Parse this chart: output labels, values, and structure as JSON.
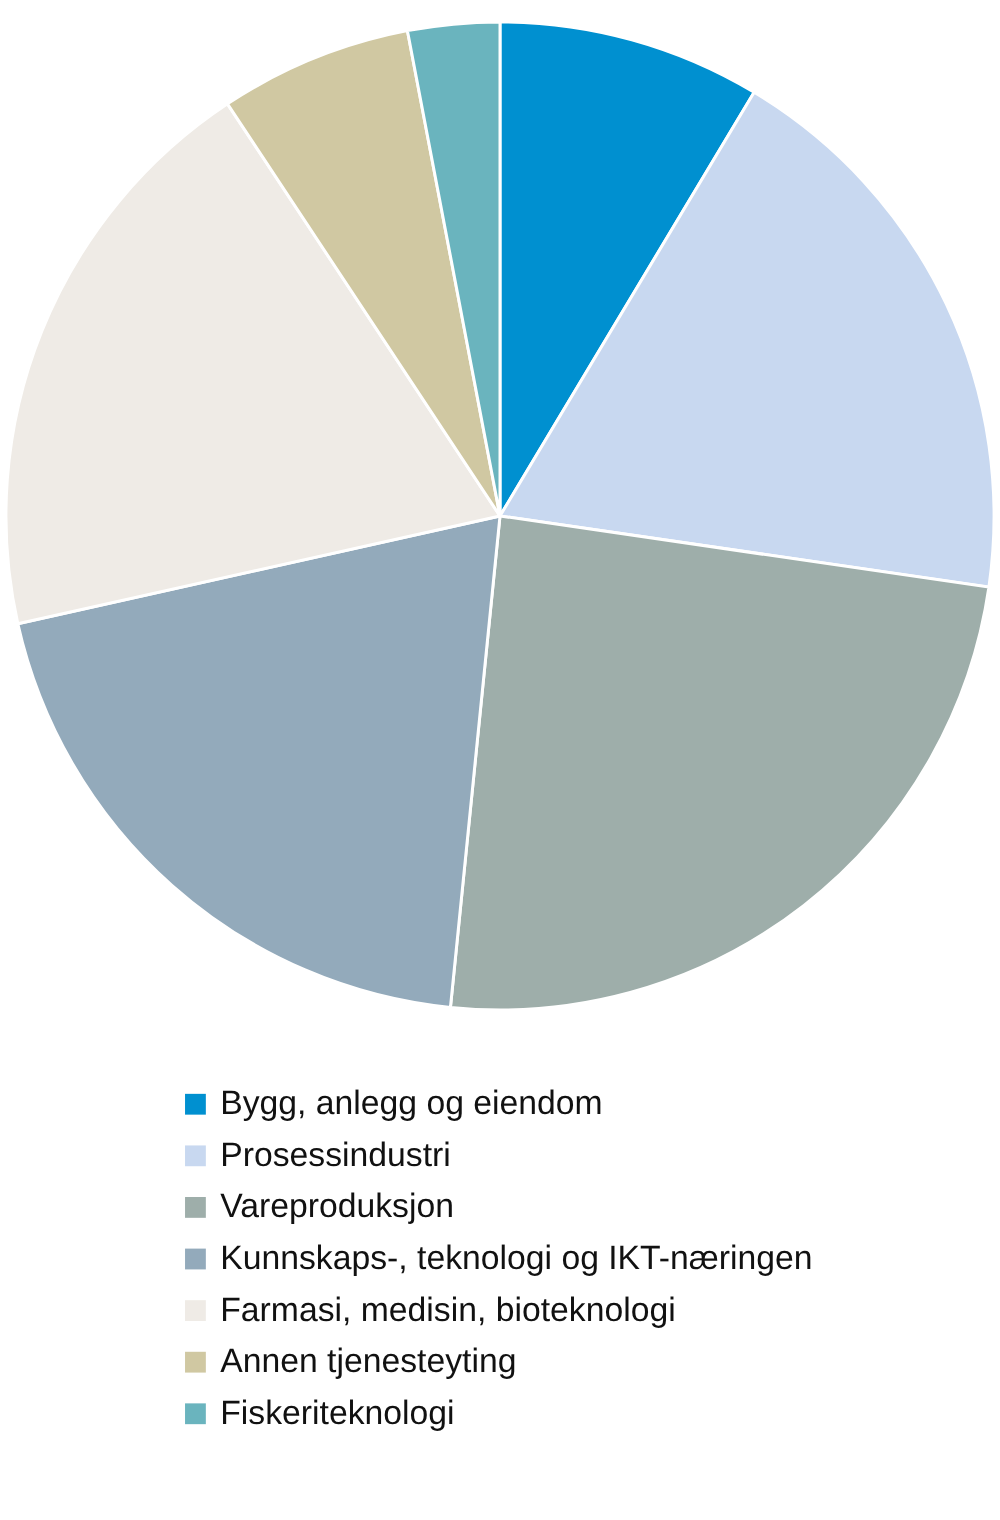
{
  "chart_data": {
    "type": "pie",
    "legend": "bottom",
    "categories": [
      "Bygg, anlegg og eiendom",
      "Prosessindustri",
      "Vareproduksjon",
      "Kunnskaps-, teknologi og IKT-næringen",
      "Farmasi, medisin, bioteknologi",
      "Annen tjenesteyting",
      "Fiskeriteknologi"
    ],
    "values": [
      8.6,
      18.7,
      24.3,
      19.9,
      19.2,
      6.3,
      3.0
    ],
    "colors": [
      "#0090d0",
      "#c8d8f0",
      "#9eaeaa",
      "#93aabb",
      "#efebe6",
      "#d0c8a2",
      "#6ab4be"
    ]
  }
}
